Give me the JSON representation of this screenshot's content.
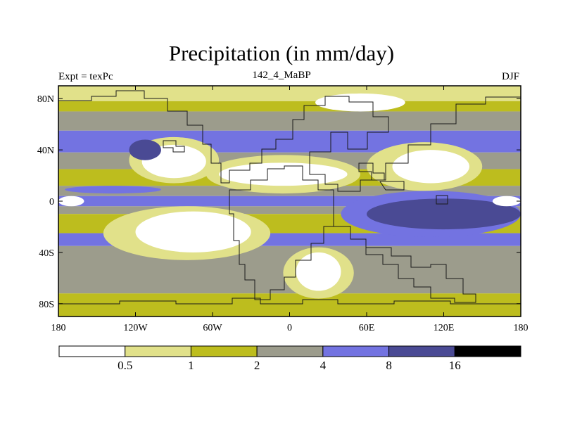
{
  "chart_data": {
    "type": "heatmap",
    "title": "Precipitation (in mm/day)",
    "left_label": "Expt = texPc",
    "center_label": "142_4_MaBP",
    "right_label": "DJF",
    "x_ticks": [
      "180",
      "120W",
      "60W",
      "0",
      "60E",
      "120E",
      "180"
    ],
    "x_tick_values": [
      -180,
      -120,
      -60,
      0,
      60,
      120,
      180
    ],
    "y_ticks": [
      "80N",
      "40N",
      "0",
      "40S",
      "80S"
    ],
    "y_tick_values": [
      80,
      40,
      0,
      -40,
      -80
    ],
    "xlim": [
      -180,
      180
    ],
    "ylim": [
      -90,
      90
    ],
    "colorbar": {
      "levels": [
        "0.5",
        "1",
        "2",
        "4",
        "8",
        "16"
      ],
      "colors": [
        "#ffffff",
        "#e1e18a",
        "#bdbd1e",
        "#9c9c8c",
        "#7373e1",
        "#4a4a94",
        "#000000"
      ]
    },
    "field_bands": [
      {
        "lat": [
          90,
          78
        ],
        "category": 1
      },
      {
        "lat": [
          78,
          70
        ],
        "category": 2
      },
      {
        "lat": [
          70,
          55
        ],
        "category": 3
      },
      {
        "lat": [
          55,
          38
        ],
        "category": 4
      },
      {
        "lat": [
          38,
          25
        ],
        "category": 3
      },
      {
        "lat": [
          25,
          12
        ],
        "category": 2
      },
      {
        "lat": [
          12,
          4
        ],
        "category": 3
      },
      {
        "lat": [
          4,
          -4
        ],
        "category": 4
      },
      {
        "lat": [
          -4,
          -10
        ],
        "category": 3
      },
      {
        "lat": [
          -10,
          -25
        ],
        "category": 2
      },
      {
        "lat": [
          -25,
          -35
        ],
        "category": 4
      },
      {
        "lat": [
          -35,
          -72
        ],
        "category": 3
      },
      {
        "lat": [
          -72,
          -90
        ],
        "category": 2
      }
    ],
    "field_patches": [
      {
        "name": "n-america-dry",
        "category": 0,
        "lon": [
          -115,
          -65
        ],
        "lat": [
          44,
          18
        ]
      },
      {
        "name": "n-america-rim",
        "category": 1,
        "lon": [
          -125,
          -55
        ],
        "lat": [
          50,
          14
        ]
      },
      {
        "name": "sahara-dry",
        "category": 0,
        "lon": [
          -55,
          45
        ],
        "lat": [
          30,
          12
        ]
      },
      {
        "name": "sahara-rim",
        "category": 1,
        "lon": [
          -65,
          55
        ],
        "lat": [
          36,
          6
        ]
      },
      {
        "name": "asia-dry",
        "category": 0,
        "lon": [
          80,
          140
        ],
        "lat": [
          40,
          14
        ]
      },
      {
        "name": "asia-rim",
        "category": 1,
        "lon": [
          60,
          150
        ],
        "lat": [
          46,
          8
        ]
      },
      {
        "name": "s-atlantic-dry",
        "category": 0,
        "lon": [
          -120,
          -30
        ],
        "lat": [
          -8,
          -40
        ]
      },
      {
        "name": "s-atlantic-rim",
        "category": 1,
        "lon": [
          -145,
          -15
        ],
        "lat": [
          -4,
          -46
        ]
      },
      {
        "name": "s-africa-dry",
        "category": 0,
        "lon": [
          5,
          40
        ],
        "lat": [
          -40,
          -70
        ]
      },
      {
        "name": "s-africa-rim",
        "category": 1,
        "lon": [
          -5,
          50
        ],
        "lat": [
          -36,
          -76
        ]
      },
      {
        "name": "pacific-wet",
        "category": 5,
        "lon": [
          60,
          180
        ],
        "lat": [
          2,
          -22
        ]
      },
      {
        "name": "pacific-wet-edge",
        "category": 4,
        "lon": [
          40,
          180
        ],
        "lat": [
          8,
          -28
        ]
      },
      {
        "name": "n-pacific-wet",
        "category": 5,
        "lon": [
          -125,
          -100
        ],
        "lat": [
          48,
          32
        ]
      },
      {
        "name": "e-tropical-dry",
        "category": 0,
        "lon": [
          158,
          180
        ],
        "lat": [
          4,
          -4
        ]
      },
      {
        "name": "w-tropical-dry",
        "category": 0,
        "lon": [
          -180,
          -160
        ],
        "lat": [
          4,
          -4
        ]
      },
      {
        "name": "n-atlantic-wet",
        "category": 4,
        "lon": [
          -175,
          -100
        ],
        "lat": [
          12,
          6
        ]
      },
      {
        "name": "arctic-dry",
        "category": 0,
        "lon": [
          20,
          90
        ],
        "lat": [
          84,
          70
        ]
      }
    ]
  }
}
